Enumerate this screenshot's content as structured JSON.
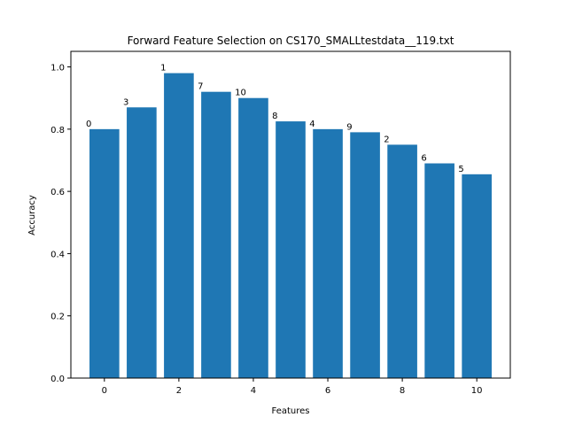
{
  "chart_data": {
    "type": "bar",
    "title": "Forward Feature Selection on CS170_SMALLtestdata__119.txt",
    "xlabel": "Features",
    "ylabel": "Accuracy",
    "ylim": [
      0,
      1.05
    ],
    "xlim": [
      -0.9,
      10.9
    ],
    "x": [
      0,
      1,
      2,
      3,
      4,
      5,
      6,
      7,
      8,
      9,
      10
    ],
    "values": [
      0.8,
      0.87,
      0.98,
      0.92,
      0.9,
      0.825,
      0.8,
      0.79,
      0.75,
      0.69,
      0.655
    ],
    "bar_labels": [
      "0",
      "3",
      "1",
      "7",
      "10",
      "8",
      "4",
      "9",
      "2",
      "6",
      "5"
    ],
    "xticks": [
      0,
      2,
      4,
      6,
      8,
      10
    ],
    "xtick_labels": [
      "0",
      "2",
      "4",
      "6",
      "8",
      "10"
    ],
    "yticks": [
      0.0,
      0.2,
      0.4,
      0.6,
      0.8,
      1.0
    ],
    "ytick_labels": [
      "0.0",
      "0.2",
      "0.4",
      "0.6",
      "0.8",
      "1.0"
    ],
    "bar_color": "#1f77b4",
    "grid": false,
    "legend": "none"
  }
}
